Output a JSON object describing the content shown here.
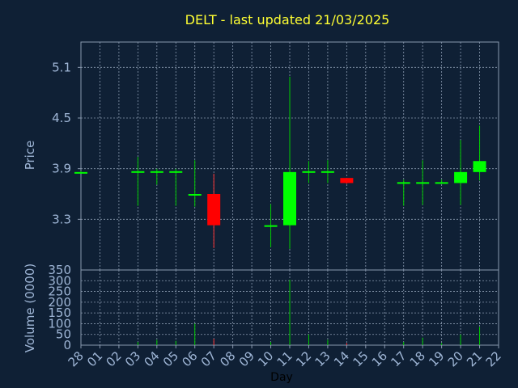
{
  "chart_data": [
    {
      "type": "candlestick",
      "title": "DELT - last updated 21/03/2025",
      "ylabel": "Price",
      "ylim": [
        2.7,
        5.4
      ],
      "yticks": [
        3.3,
        3.9,
        4.5,
        5.1
      ],
      "grid": true,
      "categories": [
        "28",
        "01",
        "02",
        "03",
        "04",
        "05",
        "06",
        "07",
        "08",
        "09",
        "10",
        "11",
        "12",
        "13",
        "14",
        "15",
        "16",
        "17",
        "18",
        "19",
        "20",
        "21",
        "22"
      ],
      "candles": [
        {
          "x": "28",
          "open": 3.86,
          "close": 3.86,
          "high": 3.87,
          "low": 3.85
        },
        {
          "x": "03",
          "open": 3.86,
          "close": 3.87,
          "high": 4.04,
          "low": 3.46
        },
        {
          "x": "04",
          "open": 3.86,
          "close": 3.87,
          "high": 3.9,
          "low": 3.71
        },
        {
          "x": "05",
          "open": 3.86,
          "close": 3.87,
          "high": 3.9,
          "low": 3.46
        },
        {
          "x": "06",
          "open": 3.6,
          "close": 3.6,
          "high": 4.0,
          "low": 3.45
        },
        {
          "x": "07",
          "open": 3.6,
          "close": 3.23,
          "high": 3.84,
          "low": 2.96
        },
        {
          "x": "10",
          "open": 3.23,
          "close": 3.23,
          "high": 3.48,
          "low": 2.97
        },
        {
          "x": "11",
          "open": 3.23,
          "close": 3.86,
          "high": 4.99,
          "low": 2.95
        },
        {
          "x": "12",
          "open": 3.86,
          "close": 3.87,
          "high": 3.99,
          "low": 3.73
        },
        {
          "x": "13",
          "open": 3.86,
          "close": 3.87,
          "high": 4.0,
          "low": 3.73
        },
        {
          "x": "14",
          "open": 3.79,
          "close": 3.73,
          "high": 3.79,
          "low": 3.72
        },
        {
          "x": "17",
          "open": 3.73,
          "close": 3.74,
          "high": 3.77,
          "low": 3.46
        },
        {
          "x": "18",
          "open": 3.73,
          "close": 3.74,
          "high": 4.0,
          "low": 3.47
        },
        {
          "x": "19",
          "open": 3.73,
          "close": 3.74,
          "high": 3.77,
          "low": 3.72
        },
        {
          "x": "20",
          "open": 3.73,
          "close": 3.86,
          "high": 4.24,
          "low": 3.47
        },
        {
          "x": "21",
          "open": 3.86,
          "close": 3.99,
          "high": 4.41,
          "low": 3.76
        }
      ],
      "colors": {
        "up": "#00ff00",
        "down": "#ff0000",
        "wick_up": "#00cc00",
        "wick_down": "#ff3333"
      }
    },
    {
      "type": "bar",
      "xlabel": "Day",
      "ylabel": "Volume (0000)",
      "ylim": [
        0,
        350
      ],
      "yticks": [
        0,
        50,
        100,
        150,
        200,
        250,
        300,
        350
      ],
      "categories": [
        "28",
        "01",
        "02",
        "03",
        "04",
        "05",
        "06",
        "07",
        "08",
        "09",
        "10",
        "11",
        "12",
        "13",
        "14",
        "15",
        "16",
        "17",
        "18",
        "19",
        "20",
        "21",
        "22"
      ],
      "values": [
        {
          "x": "03",
          "v": 15,
          "dir": "up"
        },
        {
          "x": "04",
          "v": 25,
          "dir": "up"
        },
        {
          "x": "05",
          "v": 20,
          "dir": "up"
        },
        {
          "x": "06",
          "v": 100,
          "dir": "up"
        },
        {
          "x": "07",
          "v": 30,
          "dir": "down"
        },
        {
          "x": "10",
          "v": 15,
          "dir": "up"
        },
        {
          "x": "11",
          "v": 305,
          "dir": "up"
        },
        {
          "x": "12",
          "v": 50,
          "dir": "up"
        },
        {
          "x": "13",
          "v": 25,
          "dir": "up"
        },
        {
          "x": "14",
          "v": 10,
          "dir": "down"
        },
        {
          "x": "17",
          "v": 15,
          "dir": "up"
        },
        {
          "x": "18",
          "v": 35,
          "dir": "up"
        },
        {
          "x": "19",
          "v": 10,
          "dir": "up"
        },
        {
          "x": "20",
          "v": 50,
          "dir": "up"
        },
        {
          "x": "21",
          "v": 85,
          "dir": "up"
        }
      ]
    }
  ]
}
